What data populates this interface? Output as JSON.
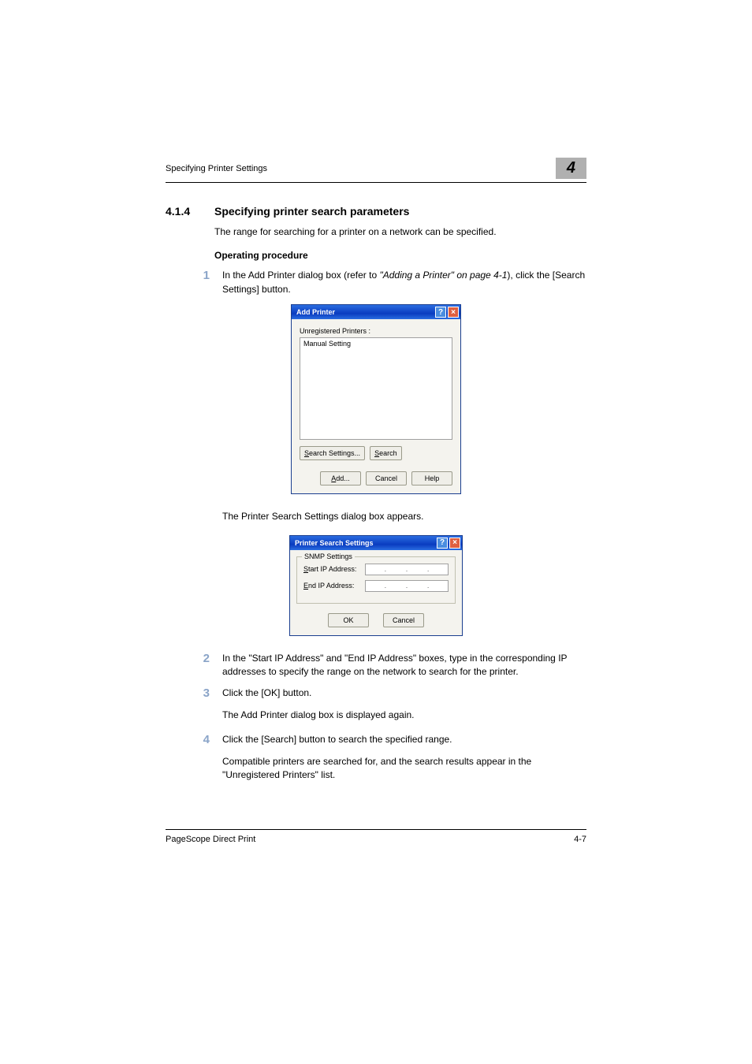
{
  "header": {
    "running_title": "Specifying Printer Settings",
    "chapter_number": "4"
  },
  "section": {
    "number": "4.1.4",
    "title": "Specifying printer search parameters",
    "intro": "The range for searching for a printer on a network can be specified."
  },
  "op_heading": "Operating procedure",
  "step1": {
    "num": "1",
    "pre": "In the Add Printer dialog box (refer to ",
    "ref": "\"Adding a Printer\" on page 4-1",
    "post": "), click the [Search Settings] button."
  },
  "dialog1": {
    "title": "Add Printer",
    "unreg_label": "Unregistered Printers :",
    "manual_item": "Manual Setting",
    "btn_search_settings_u": "S",
    "btn_search_settings_rest": "earch Settings...",
    "btn_search_u": "S",
    "btn_search_rest": "earch",
    "btn_add_u": "A",
    "btn_add_rest": "dd...",
    "btn_cancel": "Cancel",
    "btn_help": "Help"
  },
  "after_d1": "The Printer Search Settings dialog box appears.",
  "dialog2": {
    "title": "Printer Search Settings",
    "group_label": "SNMP Settings",
    "start_label_u": "S",
    "start_label_rest": "tart IP Address:",
    "end_label_u": "E",
    "end_label_rest": "nd IP Address:",
    "btn_ok": "OK",
    "btn_cancel": "Cancel"
  },
  "step2": {
    "num": "2",
    "text": "In the \"Start IP Address\" and \"End IP Address\" boxes, type in the corresponding IP addresses to specify the range on the network to search for the printer."
  },
  "step3": {
    "num": "3",
    "text": "Click the [OK] button.",
    "sub": "The Add Printer dialog box is displayed again."
  },
  "step4": {
    "num": "4",
    "text": "Click the [Search] button to search the specified range.",
    "sub": "Compatible printers are searched for, and the search results appear in the \"Unregistered Printers\" list."
  },
  "footer": {
    "left": "PageScope Direct Print",
    "right": "4-7"
  },
  "colors": {
    "step_num": "#8aa4c8",
    "chapter_bg": "#b0b0b0",
    "titlebar_bg": "#1a4ec0"
  }
}
